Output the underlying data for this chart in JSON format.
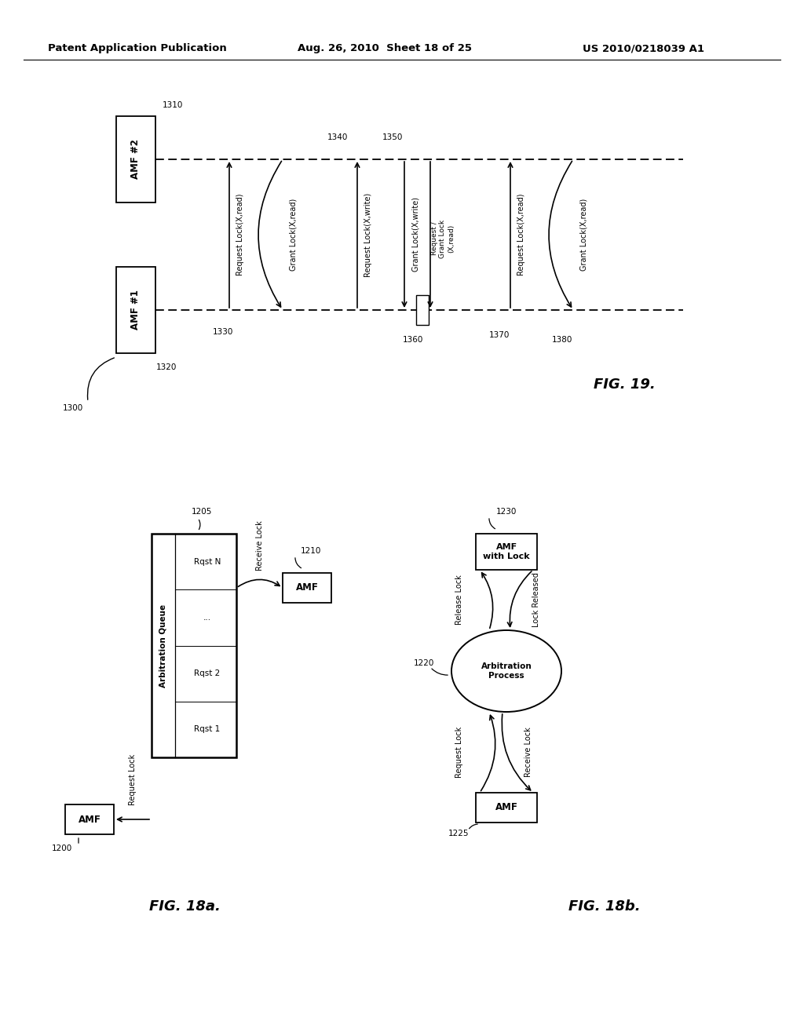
{
  "bg_color": "#ffffff",
  "header_left": "Patent Application Publication",
  "header_mid": "Aug. 26, 2010  Sheet 18 of 25",
  "header_right": "US 2010/0218039 A1",
  "fig19_label": "FIG. 19.",
  "fig18a_label": "FIG. 18a.",
  "fig18b_label": "FIG. 18b."
}
